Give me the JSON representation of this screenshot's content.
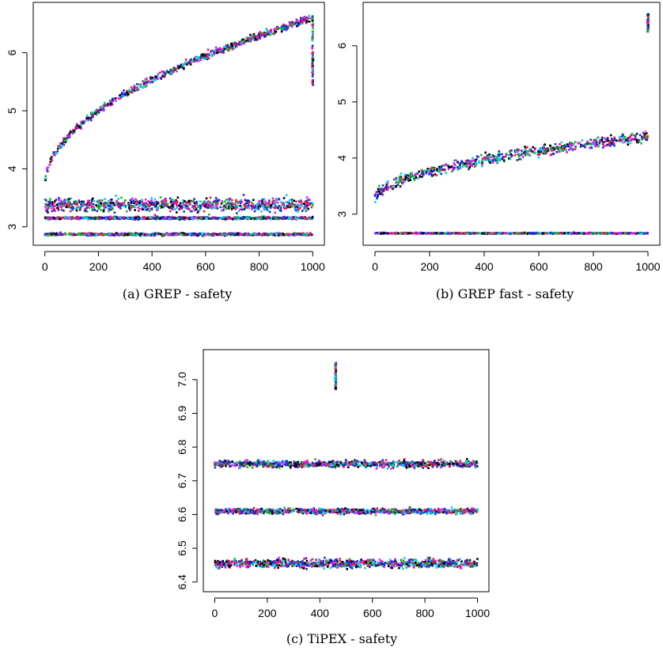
{
  "colors": [
    "#000000",
    "#e6194b",
    "#1fb41f",
    "#1a2ee6",
    "#00d4e6",
    "#e61fe6",
    "#2b2b9e"
  ],
  "chart_data": [
    {
      "type": "scatter",
      "caption": "(a) GREP - safety",
      "xlim": [
        0,
        1000
      ],
      "ylim": [
        2.85,
        6.7
      ],
      "xticks": [
        0,
        200,
        400,
        600,
        800,
        1000
      ],
      "yticks": [
        3,
        4,
        5,
        6
      ],
      "grid": false,
      "bands": [
        {
          "kind": "curve",
          "from": [
            0,
            3.7
          ],
          "to": [
            1000,
            6.6
          ],
          "spread": 0.12
        },
        {
          "kind": "flat",
          "center": 3.38,
          "spread": 0.22
        },
        {
          "kind": "flat",
          "center": 3.15,
          "spread": 0.04
        },
        {
          "kind": "flat",
          "center": 2.87,
          "spread": 0.04
        }
      ],
      "annotations": [
        {
          "kind": "vertical-column",
          "x": 1000,
          "y_range": [
            5.4,
            6.6
          ]
        }
      ]
    },
    {
      "type": "scatter",
      "caption": "(b) GREP fast - safety",
      "xlim": [
        0,
        1000
      ],
      "ylim": [
        2.62,
        6.6
      ],
      "xticks": [
        0,
        200,
        400,
        600,
        800,
        1000
      ],
      "yticks": [
        3,
        4,
        5,
        6
      ],
      "grid": false,
      "bands": [
        {
          "kind": "curve",
          "from": [
            0,
            3.25
          ],
          "to": [
            1000,
            4.38
          ],
          "spread": 0.18
        },
        {
          "kind": "flat",
          "center": 2.66,
          "spread": 0.02
        }
      ],
      "annotations": [
        {
          "kind": "vertical-column",
          "x": 1000,
          "y_range": [
            6.25,
            6.58
          ]
        }
      ]
    },
    {
      "type": "scatter",
      "caption": "(c) TiPEX - safety",
      "xlim": [
        0,
        1000
      ],
      "ylim": [
        6.4,
        7.06
      ],
      "xticks": [
        0,
        200,
        400,
        600,
        800,
        1000
      ],
      "yticks": [
        6.4,
        6.5,
        6.6,
        6.7,
        6.8,
        6.9,
        7.0
      ],
      "grid": false,
      "bands": [
        {
          "kind": "flat",
          "center": 6.75,
          "spread": 0.02
        },
        {
          "kind": "flat",
          "center": 6.61,
          "spread": 0.015
        },
        {
          "kind": "flat",
          "center": 6.455,
          "spread": 0.025
        }
      ],
      "annotations": [
        {
          "kind": "vertical-column",
          "x": 460,
          "y_range": [
            6.97,
            7.05
          ]
        }
      ]
    }
  ]
}
